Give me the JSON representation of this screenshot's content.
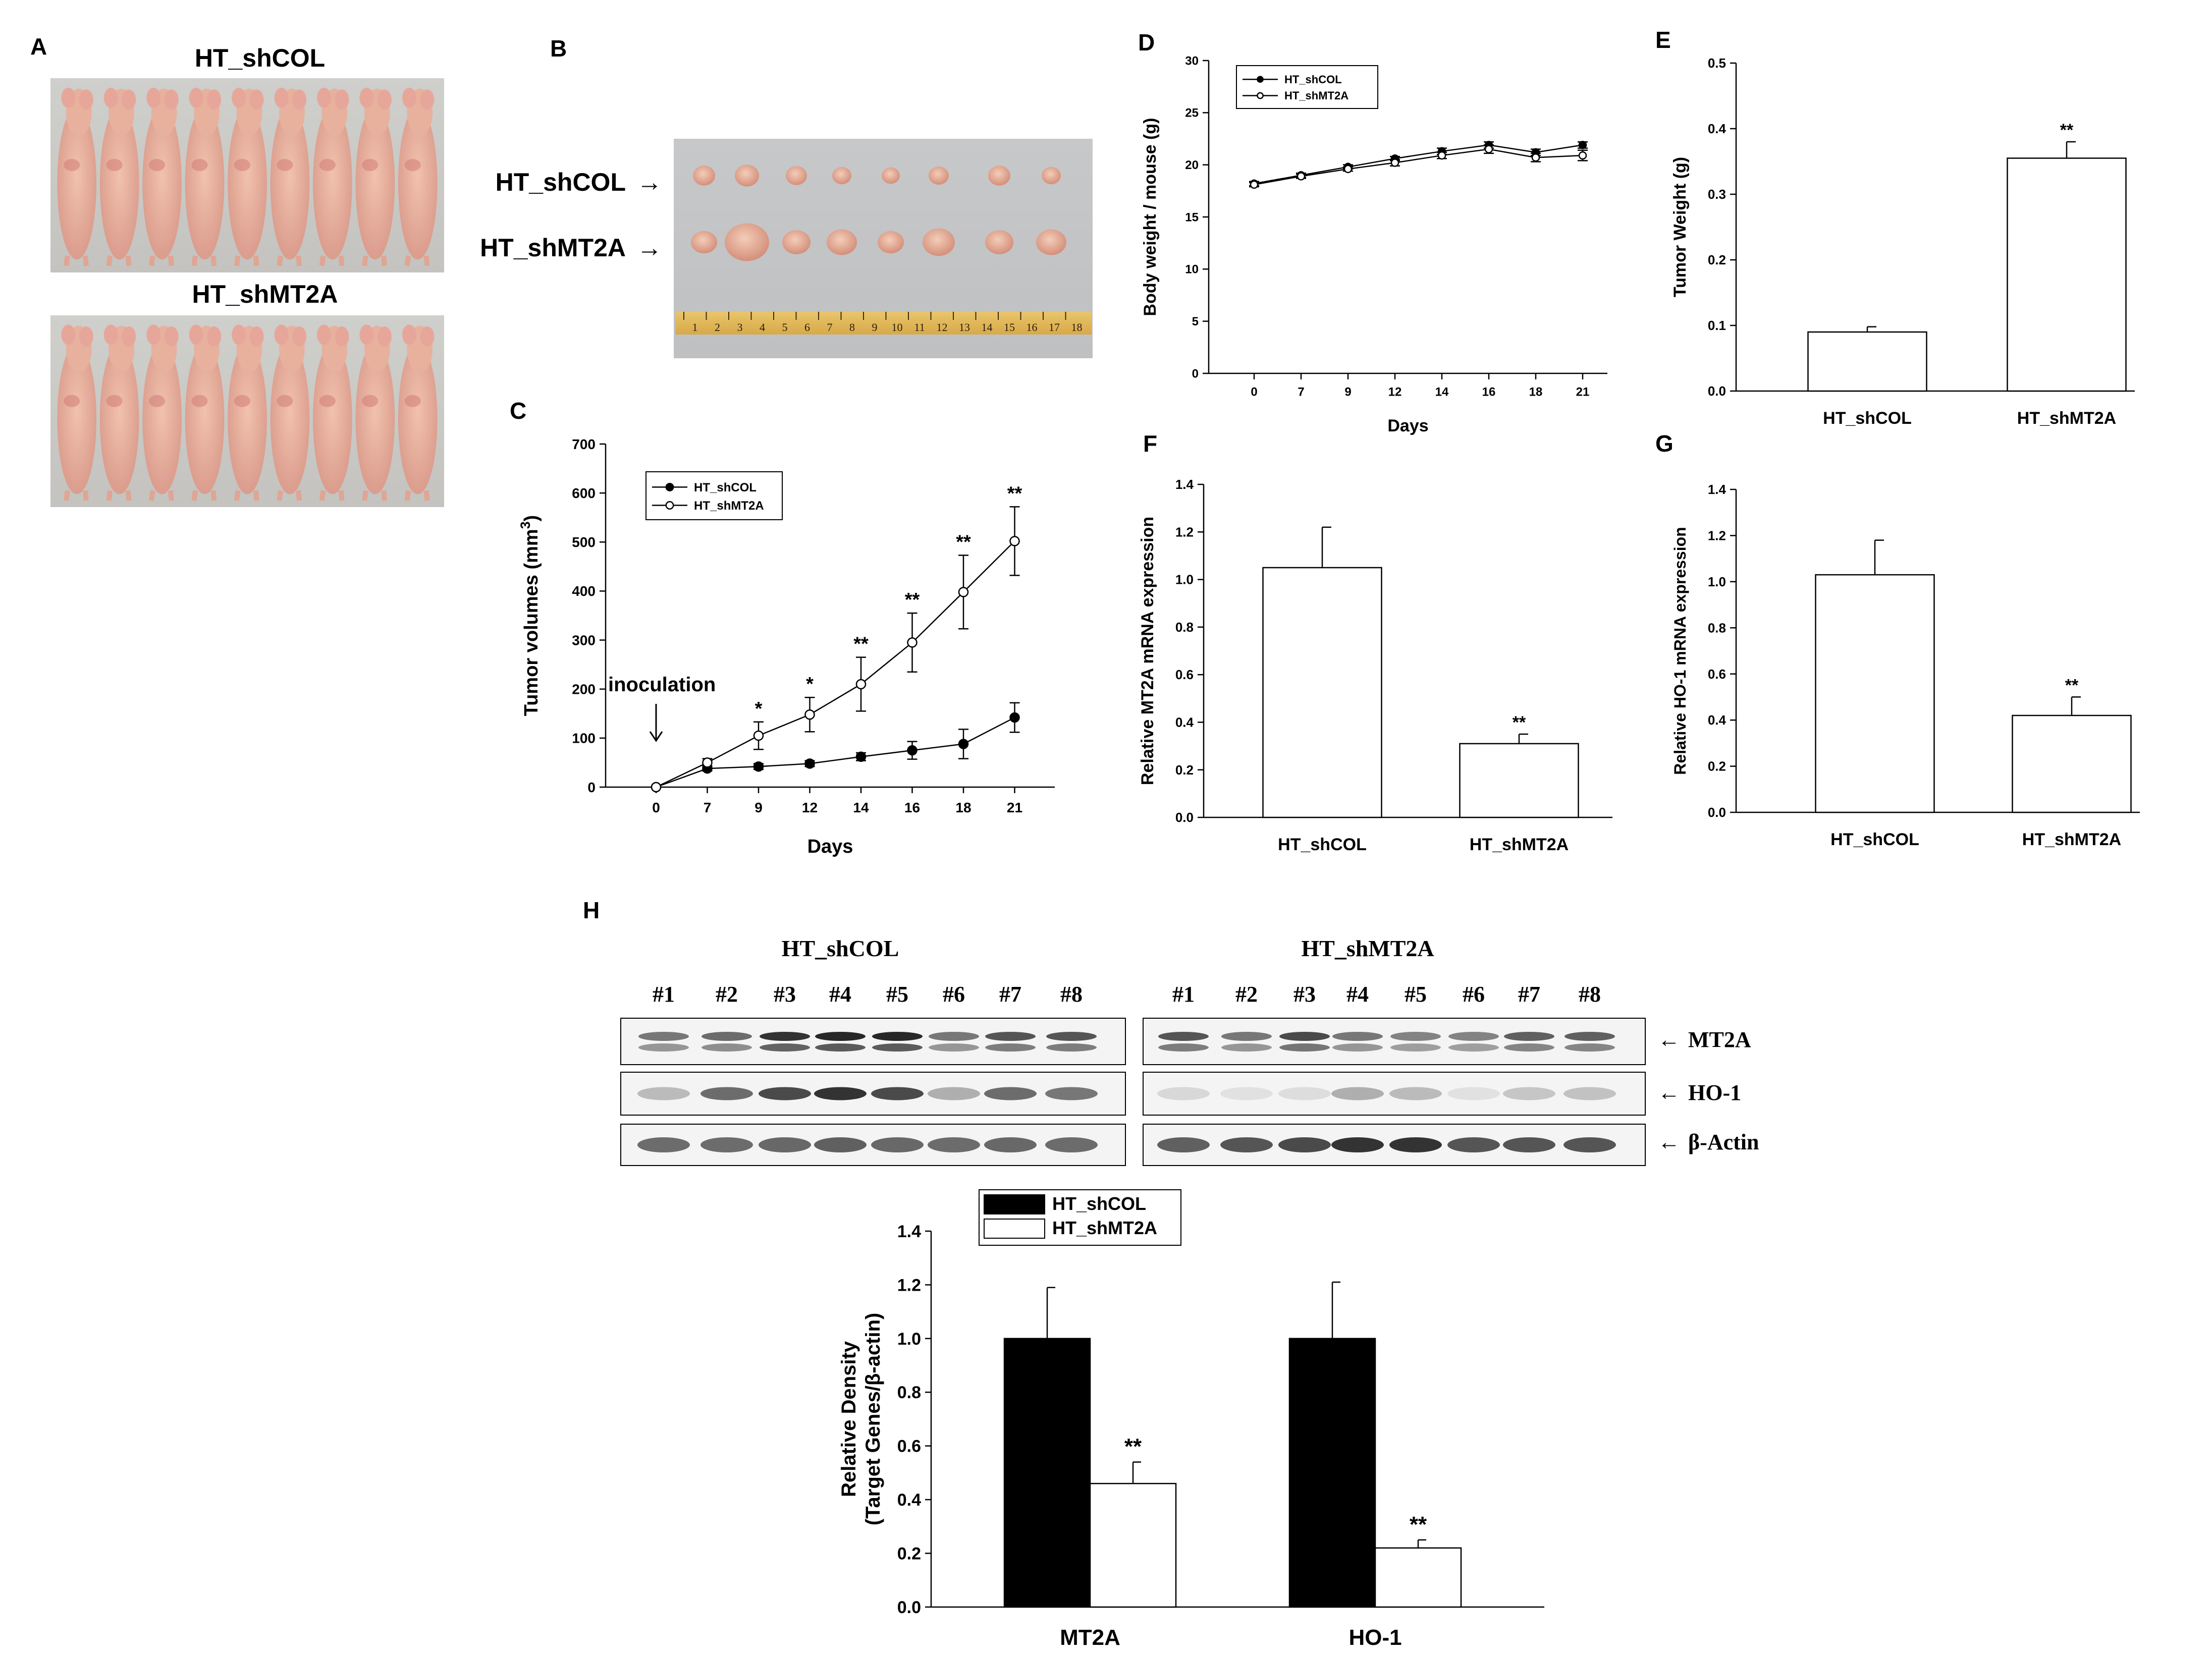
{
  "panels": {
    "a": {
      "letter": "A",
      "top_title": "HT_shCOL",
      "bottom_title": "HT_shMT2A"
    },
    "b": {
      "letter": "B",
      "row1": "HT_shCOL",
      "row2": "HT_shMT2A",
      "ruler_numbers": [
        "1",
        "2",
        "3",
        "4",
        "5",
        "6",
        "7",
        "8",
        "9",
        "10",
        "11",
        "12",
        "13",
        "14",
        "15",
        "16",
        "17",
        "18"
      ]
    },
    "c": {
      "letter": "C"
    },
    "d": {
      "letter": "D"
    },
    "e": {
      "letter": "E"
    },
    "f": {
      "letter": "F"
    },
    "g": {
      "letter": "G"
    },
    "h": {
      "letter": "H",
      "blot": {
        "group1": "HT_shCOL",
        "group2": "HT_shMT2A",
        "lanes": [
          "#1",
          "#2",
          "#3",
          "#4",
          "#5",
          "#6",
          "#7",
          "#8"
        ],
        "rows": [
          "MT2A",
          "HO-1",
          "β-Actin"
        ],
        "arrow": "←",
        "intensity_shcol": [
          [
            0.55,
            0.6,
            0.85,
            0.9,
            0.9,
            0.55,
            0.7,
            0.7
          ],
          [
            0.25,
            0.6,
            0.75,
            0.85,
            0.75,
            0.3,
            0.6,
            0.55
          ],
          [
            0.6,
            0.6,
            0.62,
            0.65,
            0.62,
            0.6,
            0.62,
            0.6
          ]
        ],
        "intensity_shmt2a": [
          [
            0.7,
            0.55,
            0.75,
            0.55,
            0.5,
            0.5,
            0.65,
            0.65
          ],
          [
            0.12,
            0.08,
            0.1,
            0.3,
            0.25,
            0.08,
            0.2,
            0.22
          ],
          [
            0.65,
            0.7,
            0.75,
            0.85,
            0.85,
            0.7,
            0.7,
            0.7
          ]
        ]
      }
    }
  },
  "chart_data": [
    {
      "id": "C",
      "type": "line",
      "title": "",
      "xlabel": "Days",
      "ylabel": "Tumor volumes (mm",
      "ylabel_sup": "3",
      "ylabel_close": ")",
      "x": [
        0,
        7,
        9,
        12,
        14,
        16,
        18,
        21
      ],
      "ylim": [
        0,
        700
      ],
      "yticks": [
        0,
        100,
        200,
        300,
        400,
        500,
        600,
        700
      ],
      "series": [
        {
          "name": "HT_shCOL",
          "marker": "filled",
          "values": [
            0,
            38,
            42,
            48,
            62,
            75,
            88,
            142
          ],
          "errors": [
            0,
            5,
            6,
            6,
            8,
            18,
            30,
            30
          ]
        },
        {
          "name": "HT_shMT2A",
          "marker": "open",
          "values": [
            0,
            50,
            105,
            148,
            210,
            295,
            398,
            502
          ],
          "errors": [
            0,
            8,
            28,
            35,
            55,
            60,
            75,
            70
          ]
        }
      ],
      "significance": [
        "",
        "",
        "*",
        "*",
        "**",
        "**",
        "**",
        "**"
      ],
      "annotation": "inoculation",
      "legend_position": "top-left"
    },
    {
      "id": "D",
      "type": "line",
      "xlabel": "Days",
      "ylabel": "Body weight / mouse (g)",
      "x": [
        0,
        7,
        9,
        12,
        14,
        16,
        18,
        21
      ],
      "ylim": [
        0,
        30
      ],
      "yticks": [
        0,
        5,
        10,
        15,
        20,
        25,
        30
      ],
      "series": [
        {
          "name": "HT_shCOL",
          "marker": "filled",
          "values": [
            18.2,
            19.0,
            19.8,
            20.6,
            21.3,
            21.9,
            21.2,
            21.9
          ],
          "errors": [
            0.2,
            0.2,
            0.2,
            0.2,
            0.3,
            0.3,
            0.3,
            0.3
          ]
        },
        {
          "name": "HT_shMT2A",
          "marker": "open",
          "values": [
            18.1,
            18.9,
            19.6,
            20.2,
            20.9,
            21.5,
            20.7,
            20.9
          ],
          "errors": [
            0.2,
            0.2,
            0.2,
            0.3,
            0.3,
            0.4,
            0.4,
            0.5
          ]
        }
      ],
      "legend_position": "top-left"
    },
    {
      "id": "E",
      "type": "bar",
      "ylabel": "Tumor Weight (g)",
      "categories": [
        "HT_shCOL",
        "HT_shMT2A"
      ],
      "values": [
        0.09,
        0.355
      ],
      "errors": [
        0.008,
        0.025
      ],
      "significance": [
        "",
        "**"
      ],
      "ylim": [
        0,
        0.5
      ],
      "yticks": [
        "0.0",
        "0.1",
        "0.2",
        "0.3",
        "0.4",
        "0.5"
      ]
    },
    {
      "id": "F",
      "type": "bar",
      "ylabel": "Relative MT2A mRNA expression",
      "categories": [
        "HT_shCOL",
        "HT_shMT2A"
      ],
      "values": [
        1.05,
        0.31
      ],
      "errors": [
        0.17,
        0.04
      ],
      "significance": [
        "",
        "**"
      ],
      "ylim": [
        0,
        1.4
      ],
      "yticks": [
        "0.0",
        "0.2",
        "0.4",
        "0.6",
        "0.8",
        "1.0",
        "1.2",
        "1.4"
      ]
    },
    {
      "id": "G",
      "type": "bar",
      "ylabel": "Relative HO-1 mRNA expression",
      "categories": [
        "HT_shCOL",
        "HT_shMT2A"
      ],
      "values": [
        1.03,
        0.42
      ],
      "errors": [
        0.15,
        0.08
      ],
      "significance": [
        "",
        "**"
      ],
      "ylim": [
        0,
        1.4
      ],
      "yticks": [
        "0.0",
        "0.2",
        "0.4",
        "0.6",
        "0.8",
        "1.0",
        "1.2",
        "1.4"
      ]
    },
    {
      "id": "H",
      "type": "bar",
      "ylabel": "Relative Density",
      "ylabel2": "(Target Genes/β-actin)",
      "categories": [
        "MT2A",
        "HO-1"
      ],
      "series": [
        {
          "name": "HT_shCOL",
          "fill": "#000000",
          "values": [
            1.0,
            1.0
          ],
          "errors": [
            0.19,
            0.21
          ]
        },
        {
          "name": "HT_shMT2A",
          "fill": "#ffffff",
          "values": [
            0.46,
            0.22
          ],
          "errors": [
            0.08,
            0.03
          ]
        }
      ],
      "significance": [
        "**",
        "**"
      ],
      "ylim": [
        0,
        1.4
      ],
      "yticks": [
        "0.0",
        "0.2",
        "0.4",
        "0.6",
        "0.8",
        "1.0",
        "1.2",
        "1.4"
      ],
      "legend_position": "top-left"
    }
  ]
}
